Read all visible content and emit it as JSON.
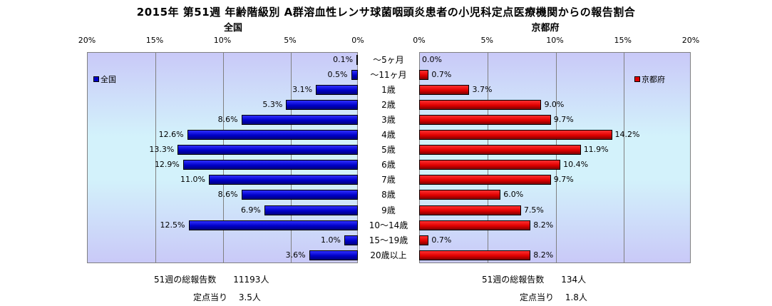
{
  "title": "2015年 第51週 年齢階級別 A群溶血性レンサ球菌咽頭炎患者の小児科定点医療機関からの報告割合",
  "chart_data": [
    {
      "type": "bar",
      "title": "全国",
      "legend": "全国",
      "legend_position": "top-left",
      "orientation": "horizontal",
      "direction": "right-to-left",
      "xlim": [
        0,
        20
      ],
      "ticks": [
        "20%",
        "15%",
        "10%",
        "5%",
        "0%"
      ],
      "grid": true,
      "color": "#0000c8",
      "categories": [
        "～5ヶ月",
        "～11ヶ月",
        "1歳",
        "2歳",
        "3歳",
        "4歳",
        "5歳",
        "6歳",
        "7歳",
        "8歳",
        "9歳",
        "10～14歳",
        "15～19歳",
        "20歳以上"
      ],
      "values": [
        0.1,
        0.5,
        3.1,
        5.3,
        8.6,
        12.6,
        13.3,
        12.9,
        11.0,
        8.6,
        6.9,
        12.5,
        1.0,
        3.6
      ],
      "labels": [
        "0.1%",
        "0.5%",
        "3.1%",
        "5.3%",
        "8.6%",
        "12.6%",
        "13.3%",
        "12.9%",
        "11.0%",
        "8.6%",
        "6.9%",
        "12.5%",
        "1.0%",
        "3.6%"
      ]
    },
    {
      "type": "bar",
      "title": "京都府",
      "legend": "京都府",
      "legend_position": "top-right",
      "orientation": "horizontal",
      "direction": "left-to-right",
      "xlim": [
        0,
        20
      ],
      "ticks": [
        "0%",
        "5%",
        "10%",
        "15%",
        "20%"
      ],
      "grid": true,
      "color": "#e00000",
      "categories": [
        "～5ヶ月",
        "～11ヶ月",
        "1歳",
        "2歳",
        "3歳",
        "4歳",
        "5歳",
        "6歳",
        "7歳",
        "8歳",
        "9歳",
        "10～14歳",
        "15～19歳",
        "20歳以上"
      ],
      "values": [
        0.0,
        0.7,
        3.7,
        9.0,
        9.7,
        14.2,
        11.9,
        10.4,
        9.7,
        6.0,
        7.5,
        8.2,
        0.7,
        8.2
      ],
      "labels": [
        "0.0%",
        "0.7%",
        "3.7%",
        "9.0%",
        "9.7%",
        "14.2%",
        "11.9%",
        "10.4%",
        "9.7%",
        "6.0%",
        "7.5%",
        "8.2%",
        "0.7%",
        "8.2%"
      ]
    }
  ],
  "footer": {
    "national_total": "51週の総報告数　　11193人",
    "national_per": "定点当り　 3.5人",
    "kyoto_total": "51週の総報告数　　134人",
    "kyoto_per": "定点当り　 1.8人"
  }
}
